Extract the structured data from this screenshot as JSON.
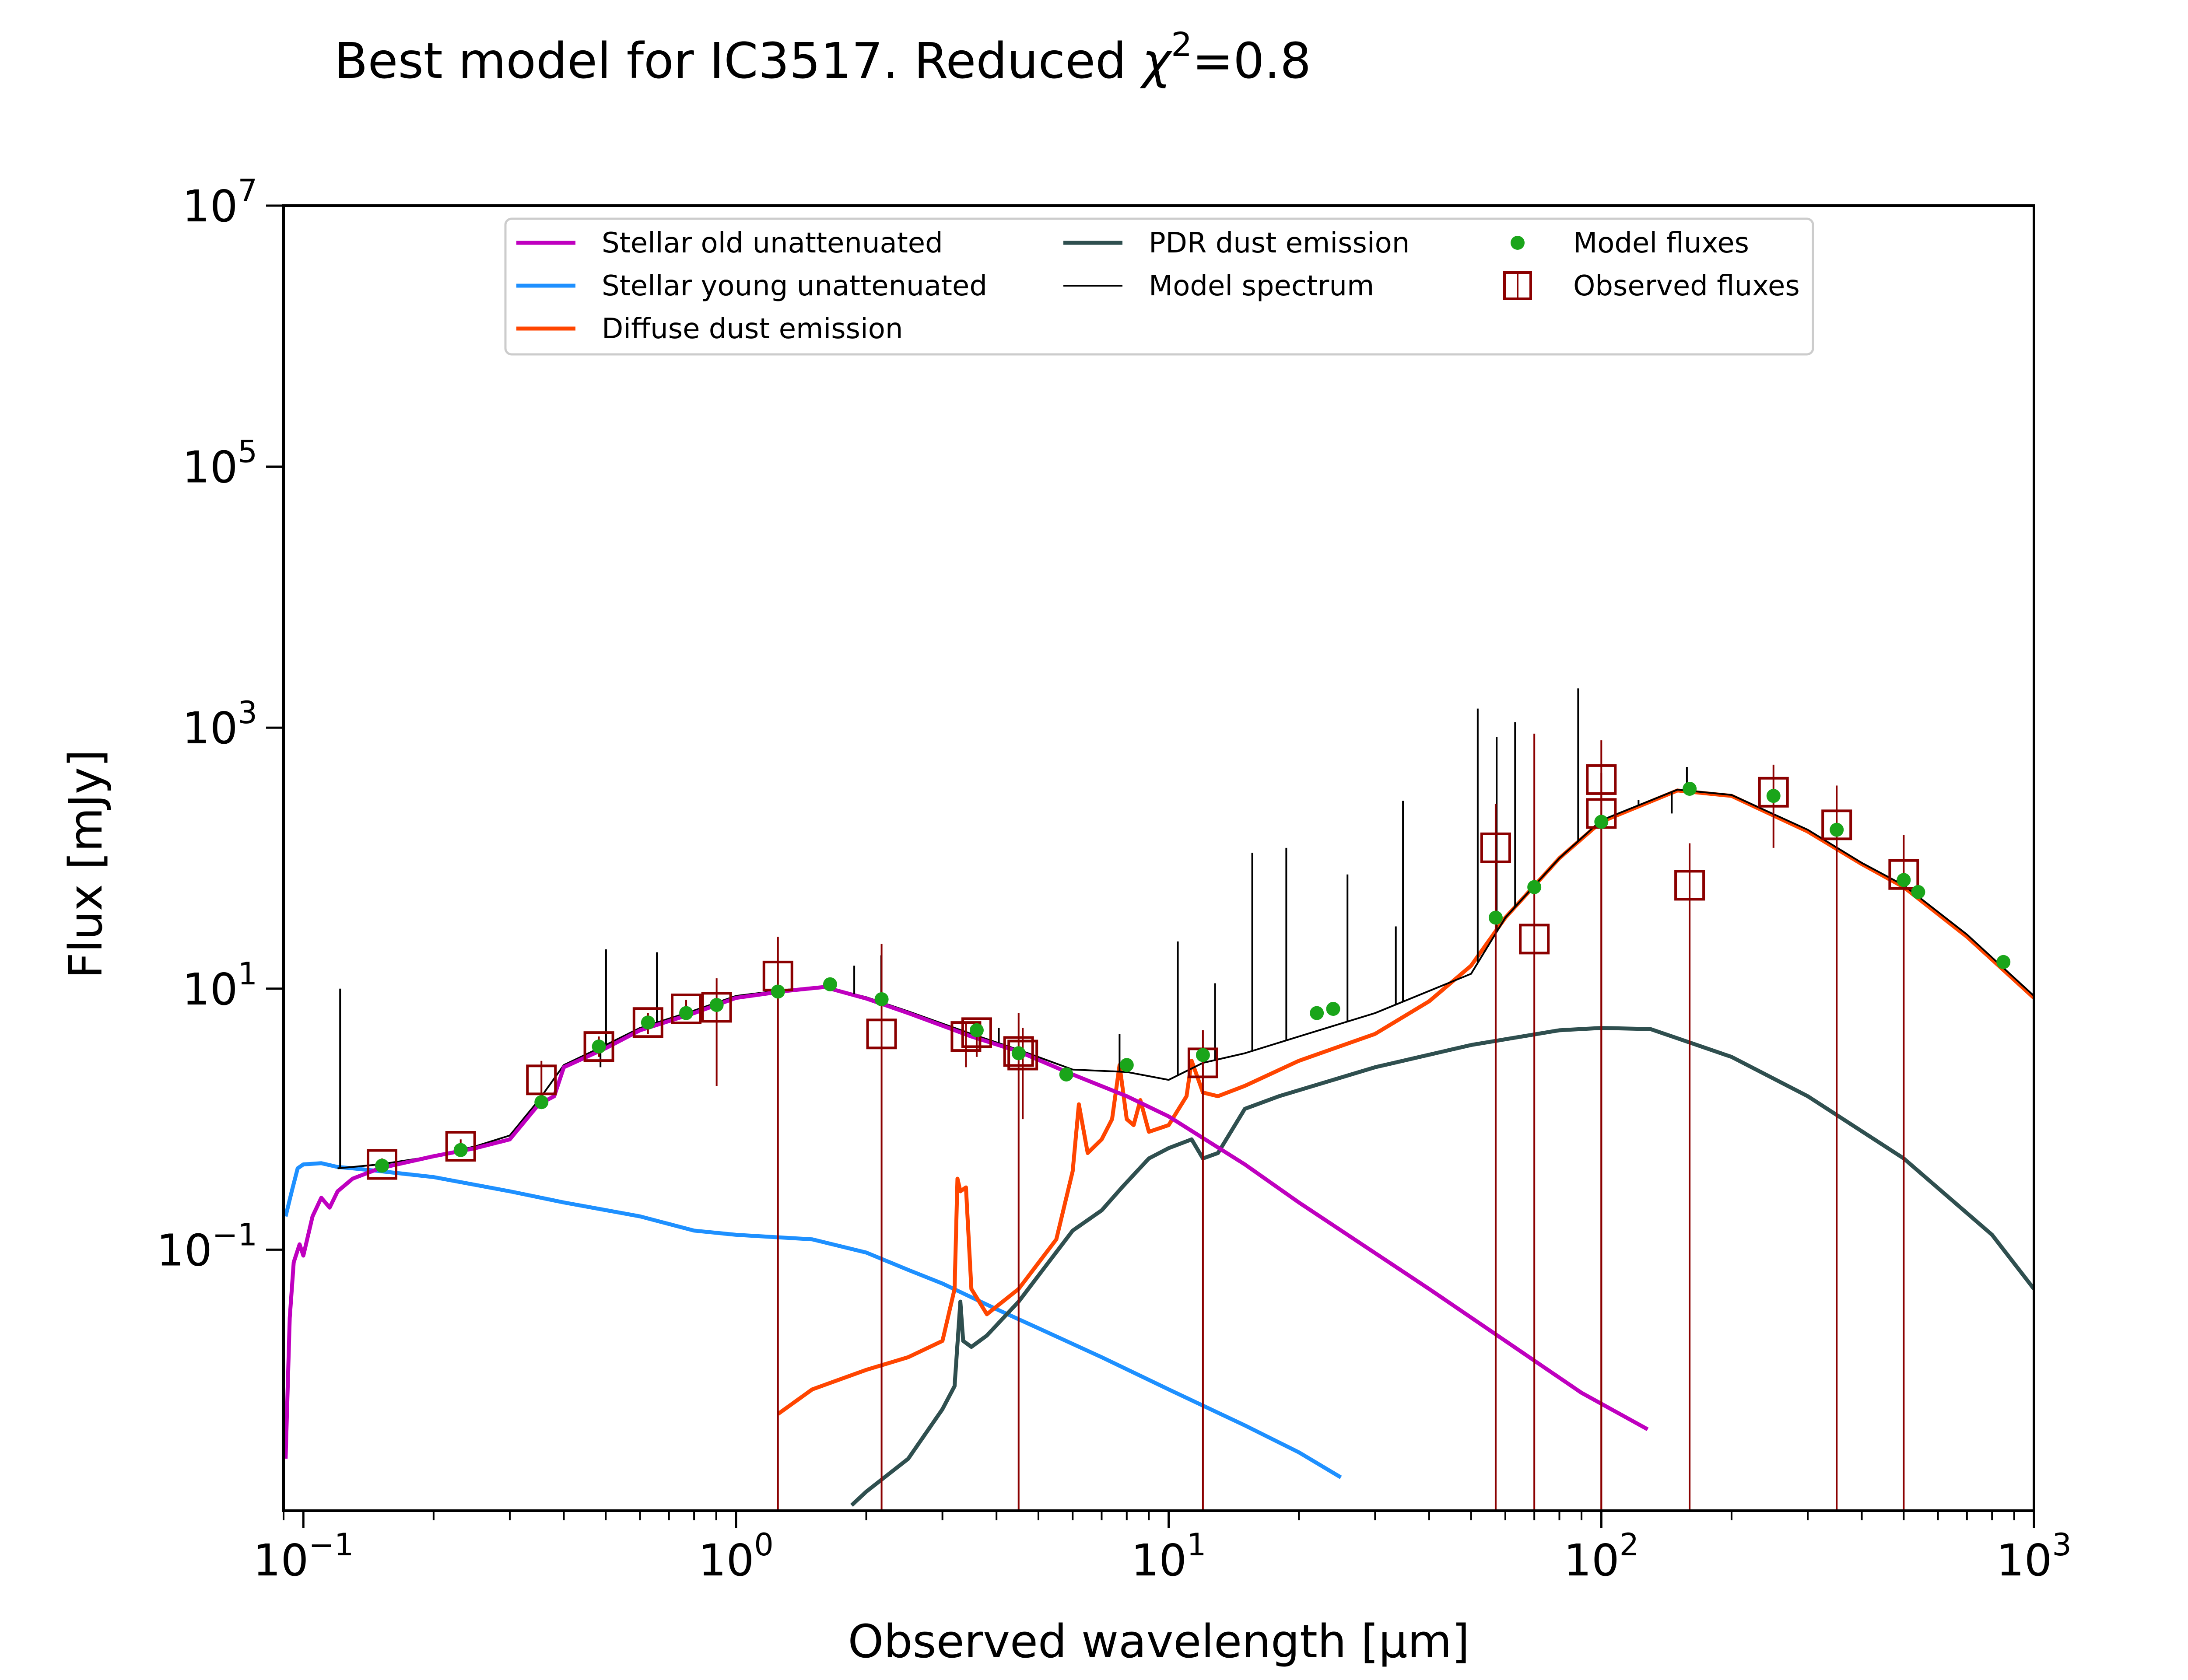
{
  "chart_data": {
    "type": "line",
    "title_main": "Best model for IC3517. Reduced ",
    "title_chi": "χ",
    "title_sup": "2",
    "title_tail": "=0.8",
    "xlabel": "Observed wavelength [μm]",
    "ylabel": "Flux [mJy]",
    "x_scale": "log",
    "y_scale": "log",
    "xlim": [
      0.09,
      1000
    ],
    "ylim": [
      0.001,
      10000000
    ],
    "x_ticks": [
      {
        "value": 0.1,
        "base": "10",
        "exp": "−1"
      },
      {
        "value": 1,
        "base": "10",
        "exp": "0"
      },
      {
        "value": 10,
        "base": "10",
        "exp": "1"
      },
      {
        "value": 100,
        "base": "10",
        "exp": "2"
      },
      {
        "value": 1000,
        "base": "10",
        "exp": "3"
      }
    ],
    "y_ticks": [
      {
        "value": 0.1,
        "base": "10",
        "exp": "−1"
      },
      {
        "value": 10,
        "base": "10",
        "exp": "1"
      },
      {
        "value": 1000,
        "base": "10",
        "exp": "3"
      },
      {
        "value": 100000,
        "base": "10",
        "exp": "5"
      },
      {
        "value": 10000000,
        "base": "10",
        "exp": "7"
      }
    ],
    "grid": false,
    "legend_position": "top-center",
    "legend": [
      {
        "label": "Stellar old unattenuated",
        "kind": "line",
        "color": "#bf00bf"
      },
      {
        "label": "Stellar young unattenuated",
        "kind": "line",
        "color": "#1e90ff"
      },
      {
        "label": "Diffuse dust emission",
        "kind": "line",
        "color": "#ff4500"
      },
      {
        "label": "PDR dust emission",
        "kind": "line",
        "color": "#2f4f4f"
      },
      {
        "label": "Model spectrum",
        "kind": "thinline",
        "color": "#000000"
      },
      {
        "label": "Model fluxes",
        "kind": "dot",
        "color": "#1aa51a"
      },
      {
        "label": "Observed fluxes",
        "kind": "square",
        "color": "#8b0000"
      }
    ],
    "series": [
      {
        "name": "Stellar old unattenuated",
        "color": "#bf00bf",
        "points": [
          [
            0.091,
            0.0025
          ],
          [
            0.093,
            0.03
          ],
          [
            0.095,
            0.08
          ],
          [
            0.098,
            0.11
          ],
          [
            0.1,
            0.09
          ],
          [
            0.105,
            0.18
          ],
          [
            0.11,
            0.25
          ],
          [
            0.115,
            0.21
          ],
          [
            0.12,
            0.28
          ],
          [
            0.13,
            0.35
          ],
          [
            0.15,
            0.42
          ],
          [
            0.2,
            0.52
          ],
          [
            0.25,
            0.6
          ],
          [
            0.3,
            0.7
          ],
          [
            0.35,
            1.3
          ],
          [
            0.38,
            1.5
          ],
          [
            0.4,
            2.5
          ],
          [
            0.5,
            3.5
          ],
          [
            0.6,
            4.8
          ],
          [
            0.8,
            6.5
          ],
          [
            1.0,
            8.5
          ],
          [
            1.3,
            9.6
          ],
          [
            1.6,
            10.3
          ],
          [
            2.0,
            8.4
          ],
          [
            2.5,
            6.5
          ],
          [
            3.0,
            5.2
          ],
          [
            3.5,
            4.3
          ],
          [
            4.5,
            3.3
          ],
          [
            6.0,
            2.2
          ],
          [
            8.0,
            1.5
          ],
          [
            10,
            1.05
          ],
          [
            15,
            0.45
          ],
          [
            20,
            0.23
          ],
          [
            40,
            0.05
          ],
          [
            60,
            0.02
          ],
          [
            90,
            0.008
          ],
          [
            128,
            0.0042
          ]
        ]
      },
      {
        "name": "Stellar young unattenuated",
        "color": "#1e90ff",
        "points": [
          [
            0.091,
            0.18
          ],
          [
            0.094,
            0.28
          ],
          [
            0.097,
            0.42
          ],
          [
            0.1,
            0.45
          ],
          [
            0.11,
            0.46
          ],
          [
            0.12,
            0.43
          ],
          [
            0.13,
            0.42
          ],
          [
            0.15,
            0.4
          ],
          [
            0.2,
            0.36
          ],
          [
            0.3,
            0.28
          ],
          [
            0.4,
            0.23
          ],
          [
            0.6,
            0.18
          ],
          [
            0.8,
            0.14
          ],
          [
            1.0,
            0.13
          ],
          [
            1.5,
            0.12
          ],
          [
            2.0,
            0.095
          ],
          [
            2.5,
            0.07
          ],
          [
            3.0,
            0.055
          ],
          [
            4.0,
            0.035
          ],
          [
            5.0,
            0.025
          ],
          [
            7.0,
            0.015
          ],
          [
            10,
            0.0085
          ],
          [
            15,
            0.0045
          ],
          [
            20,
            0.0028
          ],
          [
            25,
            0.0018
          ]
        ]
      },
      {
        "name": "Diffuse dust emission",
        "color": "#ff4500",
        "points": [
          [
            1.25,
            0.0055
          ],
          [
            1.5,
            0.0085
          ],
          [
            2.0,
            0.012
          ],
          [
            2.5,
            0.015
          ],
          [
            3.0,
            0.02
          ],
          [
            3.2,
            0.05
          ],
          [
            3.25,
            0.35
          ],
          [
            3.3,
            0.28
          ],
          [
            3.4,
            0.3
          ],
          [
            3.5,
            0.05
          ],
          [
            3.8,
            0.032
          ],
          [
            4.5,
            0.05
          ],
          [
            5.5,
            0.12
          ],
          [
            6.0,
            0.4
          ],
          [
            6.2,
            1.3
          ],
          [
            6.5,
            0.55
          ],
          [
            7.0,
            0.7
          ],
          [
            7.4,
            1.0
          ],
          [
            7.7,
            2.6
          ],
          [
            8.0,
            1.0
          ],
          [
            8.3,
            0.9
          ],
          [
            8.6,
            1.4
          ],
          [
            9.0,
            0.8
          ],
          [
            10,
            0.9
          ],
          [
            11.0,
            1.5
          ],
          [
            11.3,
            2.8
          ],
          [
            12,
            1.6
          ],
          [
            13,
            1.5
          ],
          [
            15,
            1.8
          ],
          [
            20,
            2.8
          ],
          [
            30,
            4.5
          ],
          [
            40,
            8
          ],
          [
            50,
            15
          ],
          [
            60,
            35
          ],
          [
            80,
            100
          ],
          [
            100,
            190
          ],
          [
            150,
            330
          ],
          [
            200,
            300
          ],
          [
            300,
            160
          ],
          [
            400,
            90
          ],
          [
            500,
            60
          ],
          [
            700,
            25
          ],
          [
            1000,
            8.5
          ]
        ]
      },
      {
        "name": "PDR dust emission",
        "color": "#2f4f4f",
        "points": [
          [
            1.85,
            0.0011
          ],
          [
            2.0,
            0.0014
          ],
          [
            2.5,
            0.0025
          ],
          [
            3.0,
            0.006
          ],
          [
            3.2,
            0.009
          ],
          [
            3.3,
            0.04
          ],
          [
            3.35,
            0.02
          ],
          [
            3.5,
            0.018
          ],
          [
            3.8,
            0.022
          ],
          [
            4.5,
            0.04
          ],
          [
            6.0,
            0.14
          ],
          [
            7.0,
            0.2
          ],
          [
            7.8,
            0.3
          ],
          [
            9.0,
            0.5
          ],
          [
            10,
            0.6
          ],
          [
            11.3,
            0.7
          ],
          [
            12,
            0.5
          ],
          [
            13,
            0.55
          ],
          [
            15,
            1.2
          ],
          [
            18,
            1.5
          ],
          [
            30,
            2.5
          ],
          [
            50,
            3.7
          ],
          [
            80,
            4.8
          ],
          [
            100,
            5.0
          ],
          [
            130,
            4.9
          ],
          [
            200,
            3.0
          ],
          [
            300,
            1.5
          ],
          [
            500,
            0.5
          ],
          [
            800,
            0.13
          ],
          [
            1000,
            0.05
          ]
        ]
      },
      {
        "name": "Model spectrum",
        "color": "#000000",
        "points": [
          [
            0.12,
            0.42
          ],
          [
            0.15,
            0.45
          ],
          [
            0.2,
            0.52
          ],
          [
            0.25,
            0.62
          ],
          [
            0.3,
            0.75
          ],
          [
            0.35,
            1.4
          ],
          [
            0.4,
            2.6
          ],
          [
            0.5,
            3.7
          ],
          [
            0.6,
            5
          ],
          [
            0.8,
            6.8
          ],
          [
            1.0,
            8.8
          ],
          [
            1.3,
            9.8
          ],
          [
            1.6,
            10.4
          ],
          [
            2.0,
            8.6
          ],
          [
            2.5,
            6.7
          ],
          [
            3.0,
            5.4
          ],
          [
            3.5,
            4.5
          ],
          [
            4.5,
            3.4
          ],
          [
            6.0,
            2.4
          ],
          [
            8.0,
            2.3
          ],
          [
            10,
            2.0
          ],
          [
            12,
            2.7
          ],
          [
            15,
            3.2
          ],
          [
            20,
            4.3
          ],
          [
            30,
            6.5
          ],
          [
            50,
            13
          ],
          [
            60,
            35
          ],
          [
            80,
            100
          ],
          [
            100,
            195
          ],
          [
            150,
            335
          ],
          [
            200,
            305
          ],
          [
            300,
            165
          ],
          [
            400,
            92
          ],
          [
            500,
            62
          ],
          [
            700,
            26
          ],
          [
            1000,
            8.8
          ]
        ]
      }
    ],
    "emission_lines": [
      [
        0.1216,
        10
      ],
      [
        0.4861,
        2.5
      ],
      [
        0.5007,
        20
      ],
      [
        0.6563,
        19
      ],
      [
        1.876,
        15
      ],
      [
        2.166,
        18
      ],
      [
        4.05,
        5
      ],
      [
        7.7,
        4.5
      ],
      [
        10.5,
        23
      ],
      [
        12.8,
        11
      ],
      [
        15.6,
        110
      ],
      [
        18.7,
        120
      ],
      [
        25.9,
        75
      ],
      [
        33.5,
        30
      ],
      [
        34.8,
        275
      ],
      [
        51.8,
        1400
      ],
      [
        57.3,
        850
      ],
      [
        63.2,
        1100
      ],
      [
        88.4,
        2000
      ],
      [
        121.9,
        280
      ],
      [
        145.5,
        220
      ],
      [
        157.7,
        500
      ]
    ],
    "model_fluxes": [
      [
        0.152,
        0.44
      ],
      [
        0.231,
        0.58
      ],
      [
        0.355,
        1.35
      ],
      [
        0.482,
        3.6
      ],
      [
        0.626,
        5.5
      ],
      [
        0.767,
        6.5
      ],
      [
        0.902,
        7.5
      ],
      [
        1.25,
        9.5
      ],
      [
        1.65,
        10.8
      ],
      [
        2.17,
        8.3
      ],
      [
        3.6,
        4.8
      ],
      [
        4.5,
        3.2
      ],
      [
        5.8,
        2.2
      ],
      [
        8.0,
        2.6
      ],
      [
        12,
        3.1
      ],
      [
        22,
        6.5
      ],
      [
        24,
        7.0
      ],
      [
        57,
        35
      ],
      [
        70,
        60
      ],
      [
        100,
        190
      ],
      [
        160,
        340
      ],
      [
        250,
        300
      ],
      [
        350,
        165
      ],
      [
        500,
        68
      ],
      [
        540,
        55
      ],
      [
        850,
        16
      ]
    ],
    "observed_fluxes": [
      {
        "x": 0.152,
        "y": 0.45,
        "lo": 0.4,
        "hi": 0.5
      },
      {
        "x": 0.231,
        "y": 0.62,
        "lo": 0.55,
        "hi": 0.7
      },
      {
        "x": 0.355,
        "y": 2.0,
        "lo": 1.2,
        "hi": 2.8
      },
      {
        "x": 0.482,
        "y": 3.6,
        "lo": 3.0,
        "hi": 4.3
      },
      {
        "x": 0.626,
        "y": 5.5,
        "lo": 4.5,
        "hi": 6.5
      },
      {
        "x": 0.767,
        "y": 7.0,
        "lo": 5.8,
        "hi": 8.2
      },
      {
        "x": 0.902,
        "y": 7.2,
        "lo": 1.8,
        "hi": 12
      },
      {
        "x": 1.25,
        "y": 12.5,
        "lo": 0.001,
        "hi": 25
      },
      {
        "x": 2.17,
        "y": 4.5,
        "lo": 0.001,
        "hi": 22
      },
      {
        "x": 3.4,
        "y": 4.3,
        "lo": 2.5,
        "hi": 5.5
      },
      {
        "x": 3.6,
        "y": 4.6,
        "lo": 3.0,
        "hi": 5.2
      },
      {
        "x": 4.5,
        "y": 3.3,
        "lo": 0.001,
        "hi": 6.5
      },
      {
        "x": 4.6,
        "y": 3.1,
        "lo": 1.0,
        "hi": 5.0
      },
      {
        "x": 12,
        "y": 2.7,
        "lo": 0.001,
        "hi": 4.8
      },
      {
        "x": 57,
        "y": 120,
        "lo": 0.001,
        "hi": 260
      },
      {
        "x": 70,
        "y": 24,
        "lo": 0.001,
        "hi": 900
      },
      {
        "x": 100,
        "y": 400,
        "lo": 0.001,
        "hi": 800
      },
      {
        "x": 100,
        "y": 220,
        "lo": 0.001,
        "hi": 450
      },
      {
        "x": 160,
        "y": 62,
        "lo": 0.001,
        "hi": 130
      },
      {
        "x": 250,
        "y": 320,
        "lo": 120,
        "hi": 520
      },
      {
        "x": 350,
        "y": 180,
        "lo": 0.001,
        "hi": 360
      },
      {
        "x": 500,
        "y": 75,
        "lo": 0.001,
        "hi": 150
      }
    ]
  }
}
